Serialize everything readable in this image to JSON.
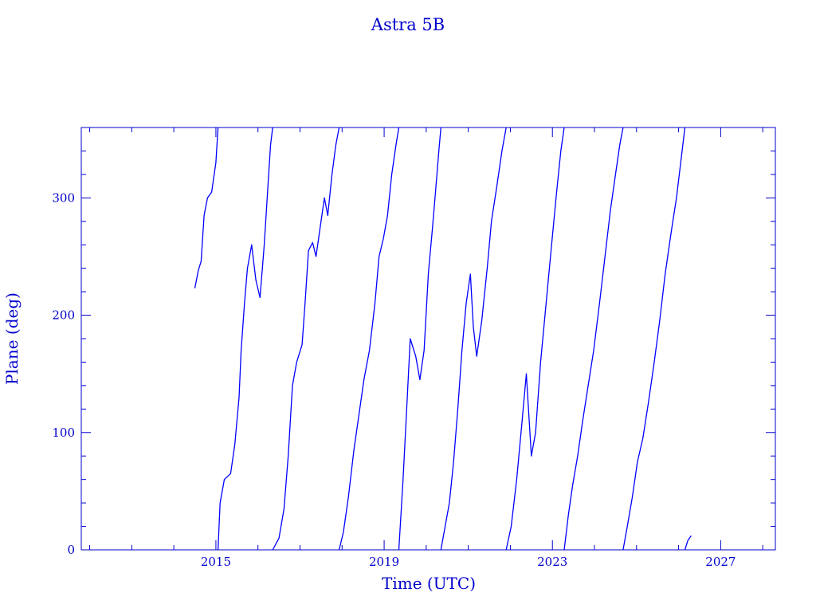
{
  "chart_data": {
    "type": "line",
    "title": "Astra 5B",
    "xlabel": "Time (UTC)",
    "ylabel": "Plane (deg)",
    "xlim": [
      2011.8,
      2028.3
    ],
    "ylim": [
      0,
      360
    ],
    "x_ticks": [
      "2015",
      "2019",
      "2023",
      "2027"
    ],
    "y_ticks": [
      "0",
      "100",
      "200",
      "300"
    ],
    "grid": false,
    "color": "#0000ff",
    "axis_color": "#0000cc",
    "series": [
      {
        "wrap": 360,
        "points": [
          [
            2014.5,
            223
          ],
          [
            2014.58,
            238
          ],
          [
            2014.65,
            246
          ],
          [
            2014.72,
            285
          ],
          [
            2014.8,
            300
          ],
          [
            2014.9,
            305
          ],
          [
            2015.0,
            330
          ],
          [
            2015.05,
            360
          ],
          [
            2015.05,
            0
          ],
          [
            2015.1,
            40
          ],
          [
            2015.2,
            60
          ],
          [
            2015.35,
            65
          ],
          [
            2015.45,
            90
          ],
          [
            2015.55,
            130
          ],
          [
            2015.6,
            170
          ],
          [
            2015.68,
            210
          ],
          [
            2015.75,
            240
          ],
          [
            2015.85,
            260
          ],
          [
            2015.95,
            230
          ],
          [
            2016.05,
            215
          ],
          [
            2016.15,
            260
          ],
          [
            2016.22,
            300
          ],
          [
            2016.3,
            345
          ],
          [
            2016.35,
            360
          ],
          [
            2016.35,
            0
          ],
          [
            2016.5,
            10
          ],
          [
            2016.62,
            35
          ],
          [
            2016.72,
            80
          ],
          [
            2016.82,
            140
          ],
          [
            2016.92,
            160
          ],
          [
            2017.05,
            175
          ],
          [
            2017.12,
            210
          ],
          [
            2017.2,
            255
          ],
          [
            2017.3,
            262
          ],
          [
            2017.38,
            250
          ],
          [
            2017.48,
            275
          ],
          [
            2017.58,
            300
          ],
          [
            2017.66,
            285
          ],
          [
            2017.76,
            320
          ],
          [
            2017.85,
            345
          ],
          [
            2017.93,
            360
          ],
          [
            2017.93,
            0
          ],
          [
            2018.03,
            15
          ],
          [
            2018.15,
            45
          ],
          [
            2018.28,
            85
          ],
          [
            2018.4,
            115
          ],
          [
            2018.52,
            145
          ],
          [
            2018.65,
            170
          ],
          [
            2018.78,
            210
          ],
          [
            2018.88,
            250
          ],
          [
            2018.98,
            265
          ],
          [
            2019.08,
            285
          ],
          [
            2019.18,
            320
          ],
          [
            2019.28,
            345
          ],
          [
            2019.35,
            360
          ],
          [
            2019.35,
            0
          ],
          [
            2019.45,
            60
          ],
          [
            2019.55,
            130
          ],
          [
            2019.62,
            180
          ],
          [
            2019.75,
            165
          ],
          [
            2019.85,
            145
          ],
          [
            2019.95,
            170
          ],
          [
            2020.05,
            235
          ],
          [
            2020.15,
            275
          ],
          [
            2020.22,
            305
          ],
          [
            2020.3,
            340
          ],
          [
            2020.35,
            360
          ],
          [
            2020.35,
            0
          ],
          [
            2020.45,
            20
          ],
          [
            2020.55,
            40
          ],
          [
            2020.65,
            75
          ],
          [
            2020.75,
            120
          ],
          [
            2020.85,
            170
          ],
          [
            2020.95,
            210
          ],
          [
            2021.05,
            235
          ],
          [
            2021.12,
            190
          ],
          [
            2021.2,
            165
          ],
          [
            2021.32,
            195
          ],
          [
            2021.45,
            240
          ],
          [
            2021.55,
            280
          ],
          [
            2021.68,
            310
          ],
          [
            2021.8,
            340
          ],
          [
            2021.9,
            360
          ],
          [
            2021.9,
            0
          ],
          [
            2022.02,
            20
          ],
          [
            2022.15,
            60
          ],
          [
            2022.28,
            110
          ],
          [
            2022.38,
            150
          ],
          [
            2022.5,
            80
          ],
          [
            2022.6,
            100
          ],
          [
            2022.72,
            160
          ],
          [
            2022.85,
            210
          ],
          [
            2022.98,
            260
          ],
          [
            2023.1,
            305
          ],
          [
            2023.2,
            340
          ],
          [
            2023.28,
            360
          ],
          [
            2023.28,
            0
          ],
          [
            2023.38,
            30
          ],
          [
            2023.48,
            55
          ],
          [
            2023.6,
            80
          ],
          [
            2023.72,
            110
          ],
          [
            2023.85,
            140
          ],
          [
            2023.98,
            170
          ],
          [
            2024.12,
            210
          ],
          [
            2024.25,
            250
          ],
          [
            2024.38,
            290
          ],
          [
            2024.5,
            320
          ],
          [
            2024.6,
            345
          ],
          [
            2024.68,
            360
          ],
          [
            2024.68,
            0
          ],
          [
            2024.78,
            20
          ],
          [
            2024.9,
            45
          ],
          [
            2025.02,
            75
          ],
          [
            2025.15,
            95
          ],
          [
            2025.28,
            125
          ],
          [
            2025.42,
            160
          ],
          [
            2025.55,
            195
          ],
          [
            2025.68,
            235
          ],
          [
            2025.82,
            270
          ],
          [
            2025.95,
            300
          ],
          [
            2026.05,
            330
          ],
          [
            2026.15,
            360
          ],
          [
            2026.15,
            0
          ],
          [
            2026.22,
            8
          ],
          [
            2026.3,
            12
          ]
        ]
      }
    ]
  }
}
